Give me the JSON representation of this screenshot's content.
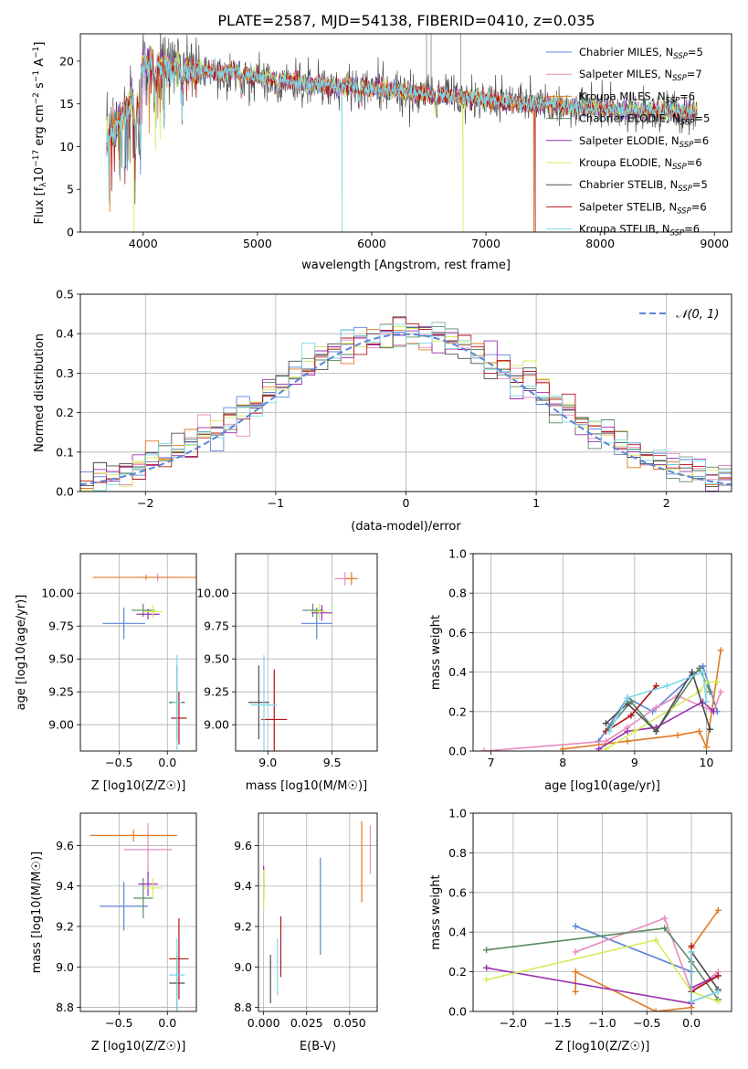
{
  "figure": {
    "title": "PLATE=2587, MJD=54138, FIBERID=0410, z=0.035"
  },
  "models": [
    {
      "name": "Chabrier MILES, N_SSP=5",
      "label_main": "Chabrier MILES, N",
      "label_sub": "SSP",
      "label_tail": "=5",
      "color": "#5b84d8"
    },
    {
      "name": "Salpeter MILES, N_SSP=7",
      "label_main": "Salpeter MILES, N",
      "label_sub": "SSP",
      "label_tail": "=7",
      "color": "#e98bbf"
    },
    {
      "name": "Kroupa MILES, N_SSP=6",
      "label_main": "Kroupa MILES, N",
      "label_sub": "SSP",
      "label_tail": "=6",
      "color": "#e07b25"
    },
    {
      "name": "Chabrier ELODIE, N_SSP=5",
      "label_main": "Chabrier ELODIE, N",
      "label_sub": "SSP",
      "label_tail": "=5",
      "color": "#5a8a62"
    },
    {
      "name": "Salpeter ELODIE, N_SSP=6",
      "label_main": "Salpeter ELODIE, N",
      "label_sub": "SSP",
      "label_tail": "=6",
      "color": "#9b2fae"
    },
    {
      "name": "Kroupa ELODIE, N_SSP=6",
      "label_main": "Kroupa ELODIE, N",
      "label_sub": "SSP",
      "label_tail": "=6",
      "color": "#d4ec5c"
    },
    {
      "name": "Chabrier STELIB, N_SSP=5",
      "label_main": "Chabrier STELIB, N",
      "label_sub": "SSP",
      "label_tail": "=5",
      "color": "#4d4d4d"
    },
    {
      "name": "Salpeter STELIB, N_SSP=6",
      "label_main": "Salpeter STELIB, N",
      "label_sub": "SSP",
      "label_tail": "=6",
      "color": "#b3151c"
    },
    {
      "name": "Kroupa STELIB, N_SSP=6",
      "label_main": "Kroupa STELIB, N",
      "label_sub": "SSP",
      "label_tail": "=6",
      "color": "#7fd8e6"
    }
  ],
  "chart_data": [
    {
      "id": "spectrum",
      "type": "line",
      "title": "PLATE=2587, MJD=54138, FIBERID=0410, z=0.035",
      "xlabel": "wavelength [Angstrom, rest frame]",
      "ylabel_main": "Flux [f",
      "ylabel_sub": "λ",
      "ylabel_tail": "10",
      "ylabel_sup1": "−17",
      "ylabel_tail2": " erg cm",
      "ylabel_sup2": "−2",
      "ylabel_tail3": " s",
      "ylabel_sup3": "−1",
      "ylabel_tail4": " A",
      "ylabel_sup4": "−1",
      "ylabel_end": "]",
      "xlim": [
        3450,
        9150
      ],
      "ylim": [
        0,
        23.2
      ],
      "xticks": [
        4000,
        5000,
        6000,
        7000,
        8000,
        9000
      ],
      "yticks": [
        0,
        5,
        10,
        15,
        20
      ],
      "xticklabels": [
        "4000",
        "5000",
        "6000",
        "7000",
        "8000",
        "9000"
      ],
      "yticklabels": [
        "0",
        "5",
        "10",
        "15",
        "20"
      ],
      "grid": false,
      "legend": "top-right",
      "x_range_data": [
        3680,
        8850
      ],
      "anchor_wavelengths": [
        3680,
        3750,
        3850,
        3950,
        4000,
        4100,
        4300,
        4500,
        4800,
        5000,
        5200,
        5500,
        5800,
        6000,
        6300,
        6600,
        6900,
        7200,
        7500,
        7800,
        8000,
        8300,
        8600,
        8850
      ],
      "anchor_flux": [
        10.8,
        12.0,
        14.0,
        16.5,
        20.0,
        19.5,
        19.2,
        18.8,
        18.7,
        18.2,
        17.8,
        17.2,
        17.0,
        16.8,
        16.4,
        16.0,
        15.6,
        15.2,
        15.0,
        14.6,
        14.4,
        14.2,
        14.1,
        14.0
      ],
      "dropouts": [
        {
          "model": "Kroupa MILES, N_SSP=6",
          "x": 7420
        },
        {
          "model": "Salpeter STELIB, N_SSP=6",
          "x": 7430
        },
        {
          "model": "Kroupa ELODIE, N_SSP=6",
          "x": 3920
        },
        {
          "model": "Kroupa STELIB, N_SSP=6",
          "x": 5740
        },
        {
          "model": "Kroupa ELODIE, N_SSP=6",
          "x": 6800
        }
      ]
    },
    {
      "id": "residuals",
      "type": "histogram",
      "xlabel": "(data-model)/error",
      "ylabel": "Normed distribution",
      "xlim": [
        -2.5,
        2.5
      ],
      "ylim": [
        0,
        0.5
      ],
      "xticks": [
        -2,
        -1,
        0,
        1,
        2
      ],
      "yticks": [
        0.0,
        0.1,
        0.2,
        0.3,
        0.4,
        0.5
      ],
      "xticklabels": [
        "−2",
        "−1",
        "0",
        "1",
        "2"
      ],
      "yticklabels": [
        "0.0",
        "0.1",
        "0.2",
        "0.3",
        "0.4",
        "0.5"
      ],
      "grid": true,
      "legend": "top-right",
      "reference_curve": {
        "label": "𝒩(0, 1)",
        "mean": 0,
        "sigma": 1,
        "color": "#5b84d8"
      },
      "bin_width": 0.1
    },
    {
      "id": "age-vs-Z",
      "type": "errorbar",
      "xlabel": "Z [log10(Z/Z☉)]",
      "ylabel": "age  [log10(age/yr)]",
      "xlim": [
        -0.9,
        0.3
      ],
      "ylim": [
        8.8,
        10.3
      ],
      "xticks": [
        -0.5,
        0.0
      ],
      "yticks": [
        9.0,
        9.25,
        9.5,
        9.75,
        10.0
      ],
      "xticklabels": [
        "−0.5",
        "0.0"
      ],
      "yticklabels": [
        "9.00",
        "9.25",
        "9.50",
        "9.75",
        "10.00"
      ],
      "grid": true,
      "points": [
        {
          "x": -0.45,
          "y": 9.77,
          "xerr": 0.22,
          "yerr": 0.12,
          "model": 0
        },
        {
          "x": -0.1,
          "y": 10.12,
          "xerr": 0.22,
          "yerr": 0.03,
          "model": 1
        },
        {
          "x": -0.22,
          "y": 10.12,
          "xerr": 0.55,
          "yerr": 0.02,
          "model": 2
        },
        {
          "x": -0.25,
          "y": 9.87,
          "xerr": 0.12,
          "yerr": 0.05,
          "model": 3
        },
        {
          "x": -0.2,
          "y": 9.84,
          "xerr": 0.12,
          "yerr": 0.04,
          "model": 4
        },
        {
          "x": -0.15,
          "y": 9.86,
          "xerr": 0.1,
          "yerr": 0.05,
          "model": 5
        },
        {
          "x": 0.1,
          "y": 9.17,
          "xerr": 0.08,
          "yerr": 0.28,
          "model": 6
        },
        {
          "x": 0.12,
          "y": 9.05,
          "xerr": 0.08,
          "yerr": 0.2,
          "model": 7
        },
        {
          "x": 0.1,
          "y": 9.17,
          "xerr": 0.05,
          "yerr": 0.36,
          "model": 8
        }
      ]
    },
    {
      "id": "age-vs-mass",
      "type": "errorbar",
      "xlabel": "mass [log10(M/M☉)]",
      "ylabel": "",
      "xlim": [
        8.75,
        9.85
      ],
      "ylim": [
        8.8,
        10.3
      ],
      "xticks": [
        9.0,
        9.5
      ],
      "yticks": [
        9.0,
        9.25,
        9.5,
        9.75,
        10.0
      ],
      "xticklabels": [
        "9.0",
        "9.5"
      ],
      "yticklabels": [
        "9.00",
        "9.25",
        "9.50",
        "9.75",
        "10.00"
      ],
      "grid": true,
      "points": [
        {
          "x": 9.38,
          "y": 9.77,
          "xerr": 0.12,
          "yerr": 0.12,
          "model": 0
        },
        {
          "x": 9.6,
          "y": 10.11,
          "xerr": 0.08,
          "yerr": 0.05,
          "model": 1
        },
        {
          "x": 9.65,
          "y": 10.11,
          "xerr": 0.05,
          "yerr": 0.05,
          "model": 2
        },
        {
          "x": 9.35,
          "y": 9.87,
          "xerr": 0.08,
          "yerr": 0.05,
          "model": 3
        },
        {
          "x": 9.42,
          "y": 9.85,
          "xerr": 0.08,
          "yerr": 0.06,
          "model": 4
        },
        {
          "x": 9.4,
          "y": 9.86,
          "xerr": 0.06,
          "yerr": 0.06,
          "model": 5
        },
        {
          "x": 8.93,
          "y": 9.17,
          "xerr": 0.08,
          "yerr": 0.28,
          "model": 6
        },
        {
          "x": 9.05,
          "y": 9.04,
          "xerr": 0.1,
          "yerr": 0.38,
          "model": 7
        },
        {
          "x": 8.97,
          "y": 9.15,
          "xerr": 0.1,
          "yerr": 0.38,
          "model": 8
        }
      ]
    },
    {
      "id": "mass-weight-vs-age",
      "type": "line",
      "xlabel": "age  [log10(age/yr)]",
      "ylabel": "mass weight",
      "xlim": [
        6.75,
        10.35
      ],
      "ylim": [
        0,
        1.0
      ],
      "xticks": [
        7,
        8,
        9,
        10
      ],
      "yticks": [
        0.0,
        0.2,
        0.4,
        0.6,
        0.8,
        1.0
      ],
      "xticklabels": [
        "7",
        "8",
        "9",
        "10"
      ],
      "yticklabels": [
        "0.0",
        "0.2",
        "0.4",
        "0.6",
        "0.8",
        "1.0"
      ],
      "grid": true,
      "series": [
        {
          "model": 0,
          "x": [
            8.5,
            8.9,
            9.25,
            9.95,
            10.15
          ],
          "y": [
            0.05,
            0.27,
            0.2,
            0.43,
            0.2
          ]
        },
        {
          "model": 1,
          "x": [
            6.9,
            8.6,
            8.9,
            9.3,
            9.6,
            10.1,
            10.2
          ],
          "y": [
            0.0,
            0.05,
            0.12,
            0.22,
            0.28,
            0.2,
            0.3
          ]
        },
        {
          "model": 2,
          "x": [
            8.0,
            8.9,
            9.6,
            9.9,
            10.0,
            10.2
          ],
          "y": [
            0.01,
            0.05,
            0.08,
            0.1,
            0.02,
            0.51
          ]
        },
        {
          "model": 3,
          "x": [
            8.6,
            8.95,
            9.3,
            9.9,
            10.05
          ],
          "y": [
            0.1,
            0.25,
            0.1,
            0.42,
            0.3
          ]
        },
        {
          "model": 4,
          "x": [
            8.5,
            8.9,
            9.3,
            9.95,
            10.1
          ],
          "y": [
            0.01,
            0.1,
            0.12,
            0.25,
            0.2
          ]
        },
        {
          "model": 5,
          "x": [
            8.6,
            9.0,
            9.9,
            10.0,
            10.15
          ],
          "y": [
            0.01,
            0.1,
            0.3,
            0.35,
            0.35
          ]
        },
        {
          "model": 6,
          "x": [
            8.6,
            8.9,
            9.3,
            9.8,
            10.05
          ],
          "y": [
            0.14,
            0.24,
            0.1,
            0.4,
            0.11
          ]
        },
        {
          "model": 7,
          "x": [
            8.6,
            8.95,
            9.3
          ],
          "y": [
            0.1,
            0.18,
            0.33
          ]
        },
        {
          "model": 8,
          "x": [
            8.65,
            8.9,
            9.45,
            9.95,
            10.0
          ],
          "y": [
            0.1,
            0.27,
            0.33,
            0.4,
            0.25
          ]
        }
      ]
    },
    {
      "id": "mass-vs-Z",
      "type": "errorbar",
      "xlabel": "Z [log10(Z/Z☉)]",
      "ylabel": "mass [log10(M/M☉)]",
      "xlim": [
        -0.9,
        0.3
      ],
      "ylim": [
        8.78,
        9.76
      ],
      "xticks": [
        -0.5,
        0.0
      ],
      "yticks": [
        8.8,
        9.0,
        9.2,
        9.4,
        9.6
      ],
      "xticklabels": [
        "−0.5",
        "0.0"
      ],
      "yticklabels": [
        "8.8",
        "9.0",
        "9.2",
        "9.4",
        "9.6"
      ],
      "grid": true,
      "points": [
        {
          "x": -0.45,
          "y": 9.3,
          "xerr": 0.25,
          "yerr": 0.12,
          "model": 0
        },
        {
          "x": -0.2,
          "y": 9.58,
          "xerr": 0.25,
          "yerr": 0.13,
          "model": 1
        },
        {
          "x": -0.35,
          "y": 9.65,
          "xerr": 0.45,
          "yerr": 0.03,
          "model": 2
        },
        {
          "x": -0.25,
          "y": 9.34,
          "xerr": 0.1,
          "yerr": 0.1,
          "model": 3
        },
        {
          "x": -0.2,
          "y": 9.41,
          "xerr": 0.1,
          "yerr": 0.06,
          "model": 4
        },
        {
          "x": -0.15,
          "y": 9.39,
          "xerr": 0.1,
          "yerr": 0.05,
          "model": 5
        },
        {
          "x": 0.1,
          "y": 8.92,
          "xerr": 0.08,
          "yerr": 0.14,
          "model": 6
        },
        {
          "x": 0.12,
          "y": 9.04,
          "xerr": 0.1,
          "yerr": 0.2,
          "model": 7
        },
        {
          "x": 0.1,
          "y": 8.96,
          "xerr": 0.08,
          "yerr": 0.18,
          "model": 8
        }
      ]
    },
    {
      "id": "mass-vs-EBV",
      "type": "errorbar",
      "xlabel": "E(B-V)",
      "ylabel": "",
      "xlim": [
        -0.003,
        0.066
      ],
      "ylim": [
        8.78,
        9.76
      ],
      "xticks": [
        0.0,
        0.025,
        0.05
      ],
      "yticks": [
        8.8,
        9.0,
        9.2,
        9.4,
        9.6
      ],
      "xticklabels": [
        "0.000",
        "0.025",
        "0.050"
      ],
      "yticklabels": [
        "8.8",
        "9.0",
        "9.2",
        "9.4",
        "9.6"
      ],
      "grid": true,
      "points": [
        {
          "x": 0.033,
          "y": 9.3,
          "xerr": 0.0,
          "yerr": 0.24,
          "model": 0
        },
        {
          "x": 0.062,
          "y": 9.58,
          "xerr": 0.0,
          "yerr": 0.12,
          "model": 1
        },
        {
          "x": 0.057,
          "y": 9.52,
          "xerr": 0.0,
          "yerr": 0.2,
          "model": 2
        },
        {
          "x": 0.0,
          "y": 9.38,
          "xerr": 0.0,
          "yerr": 0.05,
          "model": 3
        },
        {
          "x": 0.0,
          "y": 9.44,
          "xerr": 0.0,
          "yerr": 0.06,
          "model": 4
        },
        {
          "x": 0.0,
          "y": 9.38,
          "xerr": 0.0,
          "yerr": 0.1,
          "model": 5
        },
        {
          "x": 0.004,
          "y": 8.94,
          "xerr": 0.0,
          "yerr": 0.12,
          "model": 6
        },
        {
          "x": 0.01,
          "y": 9.1,
          "xerr": 0.0,
          "yerr": 0.15,
          "model": 7
        },
        {
          "x": 0.008,
          "y": 9.0,
          "xerr": 0.0,
          "yerr": 0.14,
          "model": 8
        }
      ]
    },
    {
      "id": "mass-weight-vs-Z",
      "type": "line",
      "xlabel": "Z [log10(Z/Z☉)]",
      "ylabel": "mass weight",
      "xlim": [
        -2.45,
        0.45
      ],
      "ylim": [
        0,
        1.0
      ],
      "xticks": [
        -2.0,
        -1.5,
        -1.0,
        -0.5,
        0.0
      ],
      "yticks": [
        0.0,
        0.2,
        0.4,
        0.6,
        0.8,
        1.0
      ],
      "xticklabels": [
        "−2.0",
        "−1.5",
        "−1.0",
        "−0.5",
        "0.0"
      ],
      "yticklabels": [
        "0.0",
        "0.2",
        "0.4",
        "0.6",
        "0.8",
        "1.0"
      ],
      "grid": true,
      "series": [
        {
          "model": 0,
          "x": [
            -1.3,
            0.0,
            0.0,
            0.3
          ],
          "y": [
            0.43,
            0.2,
            0.05,
            0.1
          ]
        },
        {
          "model": 1,
          "x": [
            -1.3,
            -0.3,
            0.0,
            0.3
          ],
          "y": [
            0.3,
            0.47,
            0.1,
            0.2
          ]
        },
        {
          "model": 2,
          "x": [
            -1.3,
            -1.3,
            -0.4,
            0.0,
            0.0,
            0.3
          ],
          "y": [
            0.1,
            0.2,
            0.0,
            0.02,
            0.32,
            0.51
          ]
        },
        {
          "model": 3,
          "x": [
            -2.3,
            -0.3,
            0.0,
            0.3
          ],
          "y": [
            0.31,
            0.42,
            0.25,
            0.06
          ]
        },
        {
          "model": 4,
          "x": [
            -2.3,
            0.0,
            0.0,
            0.3
          ],
          "y": [
            0.22,
            0.04,
            0.12,
            0.18
          ]
        },
        {
          "model": 5,
          "x": [
            -2.3,
            -0.4,
            0.0,
            0.3
          ],
          "y": [
            0.16,
            0.36,
            0.1,
            0.05
          ]
        },
        {
          "model": 6,
          "x": [
            0.0,
            0.3
          ],
          "y": [
            0.3,
            0.11
          ]
        },
        {
          "model": 7,
          "x": [
            0.0,
            0.0,
            0.3
          ],
          "y": [
            0.33,
            0.1,
            0.18
          ]
        },
        {
          "model": 8,
          "x": [
            0.0,
            0.0,
            0.3
          ],
          "y": [
            0.3,
            0.05,
            0.1
          ]
        }
      ]
    }
  ]
}
